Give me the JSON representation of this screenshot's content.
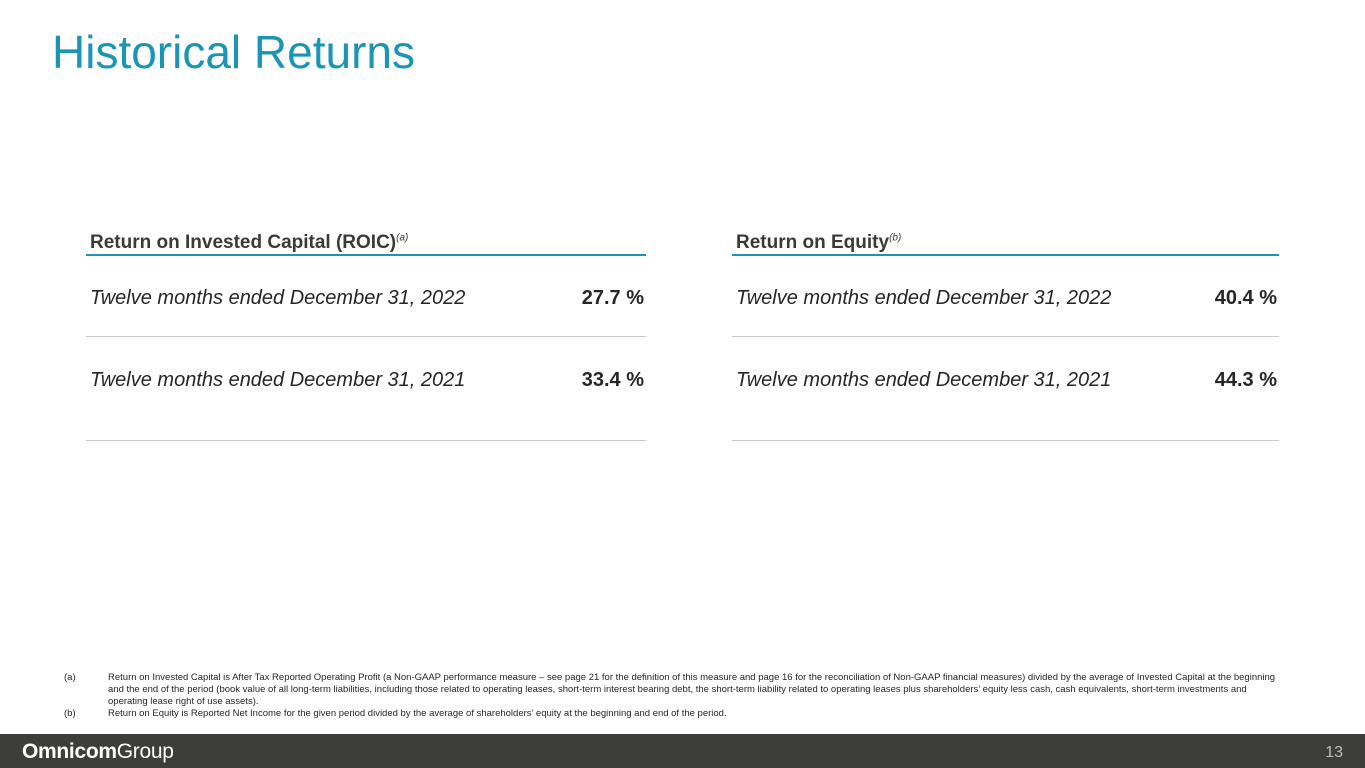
{
  "title": "Historical Returns",
  "roic": {
    "heading": "Return on Invested Capital (ROIC)",
    "footnote_mark": "(a)",
    "rows": [
      {
        "period": "Twelve months ended December 31, 2022",
        "value": "27.7 %"
      },
      {
        "period": "Twelve months ended December 31, 2021",
        "value": "33.4 %"
      }
    ]
  },
  "roe": {
    "heading": "Return on Equity",
    "footnote_mark": "(b)",
    "rows": [
      {
        "period": "Twelve months ended December 31, 2022",
        "value": "40.4 %"
      },
      {
        "period": "Twelve months ended December 31, 2021",
        "value": "44.3 %"
      }
    ]
  },
  "footnotes": [
    {
      "mark": "(a)",
      "text": "Return on Invested Capital is After Tax Reported Operating Profit (a Non-GAAP performance measure – see page 21 for the definition of this measure and page 16 for the reconciliation of Non-GAAP financial measures) divided by the average of Invested Capital at the beginning and the end of the period (book value of all long-term liabilities, including those related to operating leases, short-term interest bearing debt, the short-term liability related to operating leases plus shareholders’ equity less cash, cash equivalents, short-term investments and operating lease right of use assets)."
    },
    {
      "mark": "(b)",
      "text": "Return on Equity is Reported Net Income for the given period divided by the average of shareholders’ equity at the beginning and end of the period."
    }
  ],
  "footer": {
    "logo_bold": "Omnicom",
    "logo_light": "Group",
    "page_number": "13"
  },
  "colors": {
    "accent": "#1a95b5",
    "footer_bg": "#3d3d3c"
  }
}
